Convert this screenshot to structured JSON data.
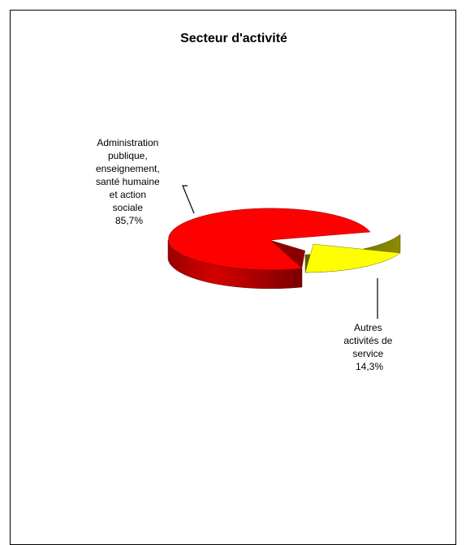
{
  "chart_data": {
    "type": "pie",
    "title": "Secteur d'activité",
    "slices": [
      {
        "label_lines": [
          "Administration",
          "publique,",
          "enseignement,",
          "santé humaine",
          "et action",
          "sociale"
        ],
        "value": 85.7,
        "value_label": "85,7%",
        "color": "#ff0000",
        "exploded": false
      },
      {
        "label_lines": [
          "Autres",
          "activités de",
          "service"
        ],
        "value": 14.3,
        "value_label": "14,3%",
        "color": "#ffff00",
        "exploded": true
      }
    ],
    "legend": "none",
    "style": "3d-pie"
  }
}
